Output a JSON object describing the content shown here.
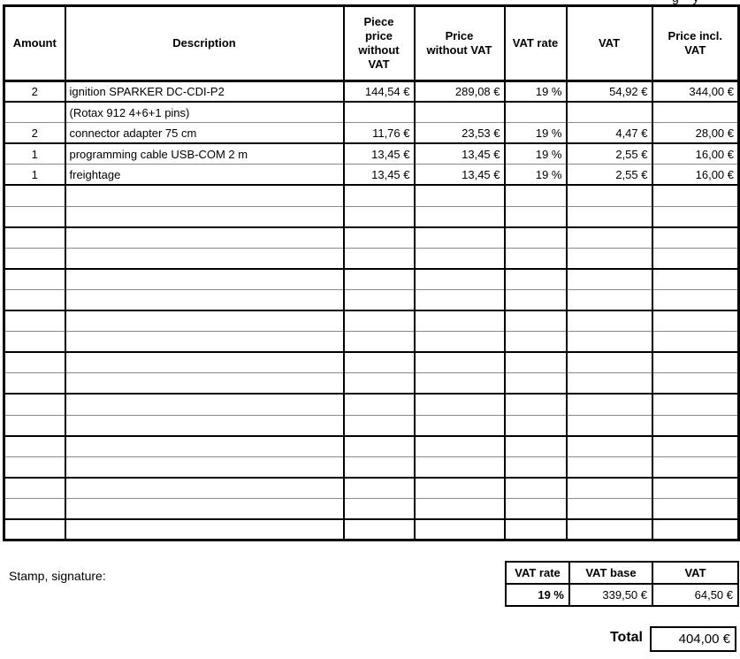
{
  "clipped_top_text": "g y",
  "invoice_table": {
    "columns": [
      "Amount",
      "Description",
      "Piece\nprice\nwithout\nVAT",
      "Price\nwithout VAT",
      "VAT rate",
      "VAT",
      "Price incl.\nVAT"
    ],
    "rows": [
      {
        "amount": "2",
        "description": "ignition SPARKER DC-CDI-P2",
        "piece_price": "144,54 €",
        "price_without_vat": "289,08 €",
        "vat_rate": "19 %",
        "vat": "54,92 €",
        "price_incl_vat": "344,00 €"
      },
      {
        "amount": "",
        "description": "(Rotax 912 4+6+1 pins)",
        "piece_price": "",
        "price_without_vat": "",
        "vat_rate": "",
        "vat": "",
        "price_incl_vat": ""
      },
      {
        "amount": "2",
        "description": "connector adapter 75 cm",
        "piece_price": "11,76 €",
        "price_without_vat": "23,53 €",
        "vat_rate": "19 %",
        "vat": "4,47 €",
        "price_incl_vat": "28,00 €"
      },
      {
        "amount": "1",
        "description": "programming cable USB-COM 2 m",
        "piece_price": "13,45 €",
        "price_without_vat": "13,45 €",
        "vat_rate": "19 %",
        "vat": "2,55 €",
        "price_incl_vat": "16,00 €"
      },
      {
        "amount": "1",
        "description": "freightage",
        "piece_price": "13,45 €",
        "price_without_vat": "13,45 €",
        "vat_rate": "19 %",
        "vat": "2,55 €",
        "price_incl_vat": "16,00 €"
      }
    ],
    "empty_row_count": 17
  },
  "stamp_label": "Stamp, signature:",
  "vat_summary": {
    "headers": [
      "VAT rate",
      "VAT base",
      "VAT"
    ],
    "values": [
      "19 %",
      "339,50 €",
      "64,50 €"
    ]
  },
  "total": {
    "label": "Total",
    "value": "404,00 €"
  },
  "colors": {
    "border_black": "#000000",
    "grid_gray": "#8a8a8a",
    "background": "#ffffff",
    "text": "#000000"
  }
}
